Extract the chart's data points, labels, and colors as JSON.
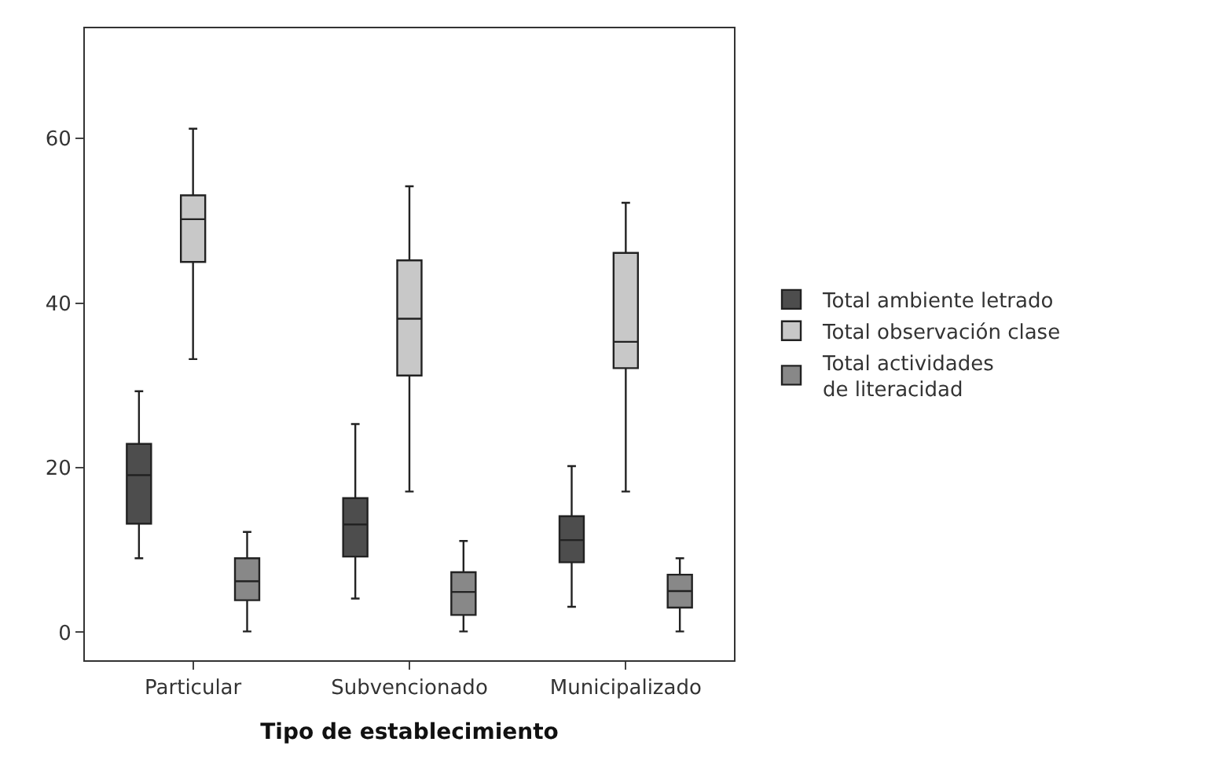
{
  "chart_data": {
    "type": "box",
    "xlabel": "Tipo de establecimiento",
    "categories": [
      "Particular",
      "Subvencionado",
      "Municipalizado"
    ],
    "ylim": [
      -3.4,
      73.4
    ],
    "yticks": [
      0,
      20,
      40,
      60
    ],
    "legend": "right",
    "series": [
      {
        "name": "Total ambiente letrado",
        "color": "#4d4d4d",
        "boxes": [
          {
            "low": 9.0,
            "q1": 13.2,
            "median": 19.1,
            "q3": 22.9,
            "high": 29.3
          },
          {
            "low": 4.1,
            "q1": 9.2,
            "median": 13.1,
            "q3": 16.3,
            "high": 25.3
          },
          {
            "low": 3.1,
            "q1": 8.5,
            "median": 11.2,
            "q3": 14.1,
            "high": 20.2
          }
        ]
      },
      {
        "name": "Total observación clase",
        "color": "#c8c8c8",
        "boxes": [
          {
            "low": 33.2,
            "q1": 45.0,
            "median": 50.2,
            "q3": 53.1,
            "high": 61.2
          },
          {
            "low": 17.1,
            "q1": 31.2,
            "median": 38.1,
            "q3": 45.2,
            "high": 54.2
          },
          {
            "low": 17.1,
            "q1": 32.1,
            "median": 35.3,
            "q3": 46.1,
            "high": 52.2
          }
        ]
      },
      {
        "name": "Total actividades\nde literacidad",
        "color": "#888888",
        "boxes": [
          {
            "low": 0.1,
            "q1": 3.9,
            "median": 6.2,
            "q3": 9.0,
            "high": 12.2
          },
          {
            "low": 0.1,
            "q1": 2.1,
            "median": 4.9,
            "q3": 7.3,
            "high": 11.1
          },
          {
            "low": 0.1,
            "q1": 3.0,
            "median": 5.0,
            "q3": 7.0,
            "high": 9.0
          }
        ]
      }
    ]
  }
}
